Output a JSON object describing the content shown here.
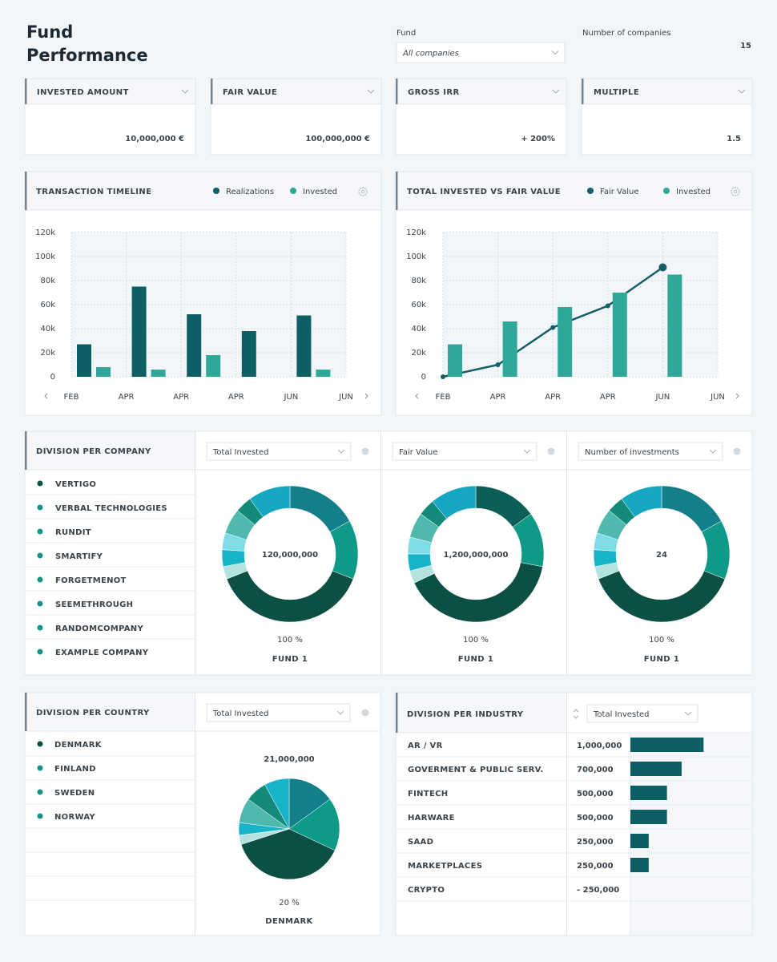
{
  "header": {
    "title": "Fund Performance",
    "fund_label": "Fund",
    "fund_select": "All companies",
    "companies_label": "Number of companies",
    "companies_count": "15"
  },
  "kpis": [
    {
      "label": "INVESTED AMOUNT",
      "value": "10,000,000 €",
      "color": "#33393f"
    },
    {
      "label": "FAIR VALUE",
      "value": "100,000,000 €",
      "color": "#33393f"
    },
    {
      "label": "GROSS IRR",
      "value": "+ 200%",
      "color": "#45ad5c"
    },
    {
      "label": "MULTIPLE",
      "value": "1.5",
      "color": "#45ad5c"
    }
  ],
  "division_company": {
    "title": "DIVISION PER COMPANY",
    "companies": [
      {
        "name": "VERTIGO",
        "color": "#0b4f45"
      },
      {
        "name": "VERBAL TECHNOLOGIES",
        "color": "#14948a"
      },
      {
        "name": "RUNDIT",
        "color": "#14948a"
      },
      {
        "name": "SMARTIFY",
        "color": "#14948a"
      },
      {
        "name": "FORGETMENOT",
        "color": "#14948a"
      },
      {
        "name": "SEEMETHROUGH",
        "color": "#14948a"
      },
      {
        "name": "RANDOMCOMPANY",
        "color": "#14948a"
      },
      {
        "name": "EXAMPLE COMPANY",
        "color": "#14948a"
      }
    ]
  },
  "division_country": {
    "title": "DIVISION PER COUNTRY",
    "countries": [
      {
        "name": "DENMARK",
        "color": "#0b4f45"
      },
      {
        "name": "FINLAND",
        "color": "#14948a"
      },
      {
        "name": "SWEDEN",
        "color": "#14948a"
      },
      {
        "name": "NORWAY",
        "color": "#14948a"
      }
    ]
  },
  "chart_data": [
    {
      "type": "bar",
      "title": "TRANSACTION TIMELINE",
      "categories": [
        null,
        null,
        null,
        null,
        null
      ],
      "xticks": [
        "FEB",
        "APR",
        "APR",
        "APR",
        "JUN",
        "JUN"
      ],
      "series": [
        {
          "name": "Realizations",
          "color": "#0e5f63",
          "values": [
            27000,
            75000,
            52000,
            38000,
            51000
          ]
        },
        {
          "name": "Invested",
          "color": "#2fa89a",
          "values": [
            8000,
            6000,
            18000,
            null,
            6000
          ]
        }
      ],
      "ylim": [
        0,
        120000
      ],
      "yticks": [
        0,
        {
          "value": 20000,
          "label": "20k"
        },
        {
          "value": 40000,
          "label": "40k"
        },
        {
          "value": 60000,
          "label": "60k"
        },
        {
          "value": 80000,
          "label": "80k"
        },
        {
          "value": 100000,
          "label": "100k"
        },
        {
          "value": 120000,
          "label": "120k"
        }
      ],
      "grid": true
    },
    {
      "type": "combo",
      "title": "TOTAL INVESTED VS FAIR VALUE",
      "categories": [
        null,
        null,
        null,
        null,
        null
      ],
      "xticks": [
        "FEB",
        "APR",
        "APR",
        "APR",
        "JUN",
        "JUN"
      ],
      "series": [
        {
          "name": "Fair Value",
          "type": "line",
          "color": "#145e6a",
          "values": [
            0,
            10000,
            41000,
            59000,
            91000
          ]
        },
        {
          "name": "Invested",
          "type": "bar",
          "color": "#2fa89a",
          "values": [
            27000,
            46000,
            58000,
            70000,
            85000
          ]
        }
      ],
      "ylim": [
        0,
        120000
      ],
      "yticks": [
        0,
        {
          "value": 20000,
          "label": "20k"
        },
        {
          "value": 40000,
          "label": "40k"
        },
        {
          "value": 60000,
          "label": "60k"
        },
        {
          "value": 80000,
          "label": "80k"
        },
        {
          "value": 100000,
          "label": "100k"
        },
        {
          "value": 120000,
          "label": "120k"
        }
      ],
      "grid": true
    },
    {
      "type": "donut",
      "select": "Total Invested",
      "center_label": "120,000,000",
      "footer": "100 %",
      "label": "FUND 1",
      "values": [
        17,
        14,
        38,
        3,
        4,
        4,
        6,
        4,
        10
      ],
      "colors": [
        "#137f8a",
        "#0e9a86",
        "#0b4f45",
        "#b3e3df",
        "#16b3c9",
        "#7fdbe5",
        "#4fb9ae",
        "#138a7a",
        "#16a8c2"
      ]
    },
    {
      "type": "donut",
      "select": "Fair Value",
      "center_label": "1,200,000,000",
      "footer": "100 %",
      "label": "FUND 1",
      "values": [
        15,
        13,
        40,
        3,
        4,
        4,
        6,
        4,
        11
      ],
      "colors": [
        "#0b5f57",
        "#0e9a86",
        "#0b4f45",
        "#b3e3df",
        "#16b3c9",
        "#7fdbe5",
        "#4fb9ae",
        "#138a7a",
        "#16a8c2"
      ]
    },
    {
      "type": "donut",
      "select": "Number of investments",
      "center_label": "24",
      "footer": "100 %",
      "label": "FUND 1",
      "values": [
        17,
        14,
        38,
        3,
        4,
        4,
        6,
        4,
        10
      ],
      "colors": [
        "#137f8a",
        "#0e9a86",
        "#0b4f45",
        "#b3e3df",
        "#16b3c9",
        "#7fdbe5",
        "#4fb9ae",
        "#138a7a",
        "#16a8c2"
      ]
    },
    {
      "type": "pie",
      "select": "Total Invested",
      "center_label": "21,000,000",
      "footer": "20 %",
      "label": "DENMARK",
      "values": [
        15,
        17,
        38,
        3,
        4,
        8,
        7,
        8
      ],
      "colors": [
        "#127f8a",
        "#0e9a86",
        "#0b4f45",
        "#b3e3df",
        "#16b3c9",
        "#4fb9ae",
        "#138a7a",
        "#16b3c9"
      ]
    },
    {
      "type": "hbar",
      "title": "DIVISION PER INDUSTRY",
      "select": "Total Invested",
      "categories": [
        "AR / VR",
        "GOVERMENT & PUBLIC SERV.",
        "FINTECH",
        "HARWARE",
        "SAAD",
        "MARKETPLACES",
        "CRYPTO"
      ],
      "values": [
        1000000,
        700000,
        500000,
        500000,
        250000,
        250000,
        -250000
      ],
      "value_labels": [
        "1,000,000",
        "700,000",
        "500,000",
        "500,000",
        "250,000",
        "250,000",
        "- 250,000"
      ],
      "xlim": [
        0,
        1150000
      ],
      "color": "#0e5f63",
      "label_color": "#22292f",
      "negative_color": "#c0392b"
    }
  ]
}
